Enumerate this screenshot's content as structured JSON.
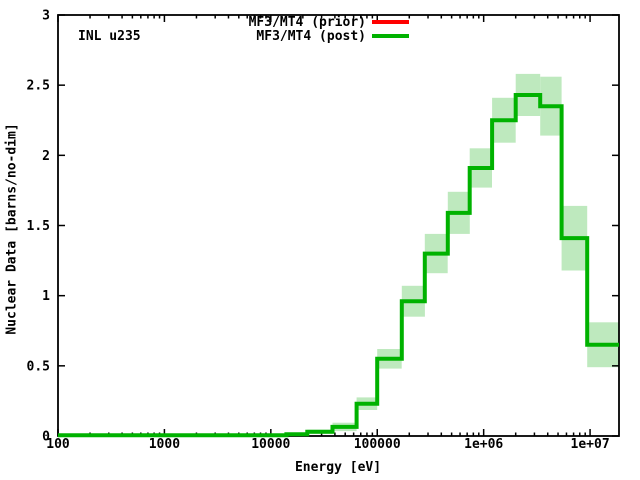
{
  "chart_data": {
    "type": "step-histogram",
    "title": "",
    "xlabel": "Energy [eV]",
    "ylabel": "Nuclear Data [barns/no-dim]",
    "annotation": {
      "text": "INL u235",
      "position": "top-left"
    },
    "x_scale": "log",
    "y_scale": "linear",
    "xlim": [
      100,
      18700000
    ],
    "ylim": [
      0,
      3
    ],
    "grid": false,
    "x_ticks": [
      {
        "v": 100,
        "label": "100"
      },
      {
        "v": 1000,
        "label": "1000"
      },
      {
        "v": 10000,
        "label": "10000"
      },
      {
        "v": 100000,
        "label": "100000"
      },
      {
        "v": 1000000,
        "label": "1e+06"
      },
      {
        "v": 10000000,
        "label": "1e+07"
      }
    ],
    "y_ticks": [
      {
        "v": 0,
        "label": "0"
      },
      {
        "v": 0.5,
        "label": "0.5"
      },
      {
        "v": 1,
        "label": "1"
      },
      {
        "v": 1.5,
        "label": "1.5"
      },
      {
        "v": 2,
        "label": "2"
      },
      {
        "v": 2.5,
        "label": "2.5"
      },
      {
        "v": 3,
        "label": "3"
      }
    ],
    "legend": {
      "position": "top-center",
      "entries": [
        {
          "label": "MF3/MT4 (prior)",
          "color": "#ff0000"
        },
        {
          "label": "MF3/MT4 (post)",
          "color": "#00b200"
        }
      ]
    },
    "series": [
      {
        "name": "MF3/MT4 (prior)",
        "color": "#ff0000",
        "hidden_behind_post": true
      },
      {
        "name": "MF3/MT4 (post)",
        "color": "#00b200",
        "band_color": "#bee9be",
        "group_boundaries_eV": [
          100,
          14000,
          22000,
          38000,
          64000,
          100000,
          170000,
          280000,
          460000,
          740000,
          1200000,
          2000000,
          3400000,
          5400000,
          9400000,
          18700000
        ],
        "values_barns": [
          0.005,
          0.012,
          0.03,
          0.065,
          0.23,
          0.55,
          0.96,
          1.3,
          1.59,
          1.91,
          2.25,
          2.43,
          2.35,
          1.41,
          0.65
        ],
        "uncertainty": [
          0.004,
          0.008,
          0.015,
          0.03,
          0.045,
          0.07,
          0.11,
          0.14,
          0.15,
          0.14,
          0.16,
          0.15,
          0.21,
          0.23,
          0.16
        ]
      }
    ]
  }
}
